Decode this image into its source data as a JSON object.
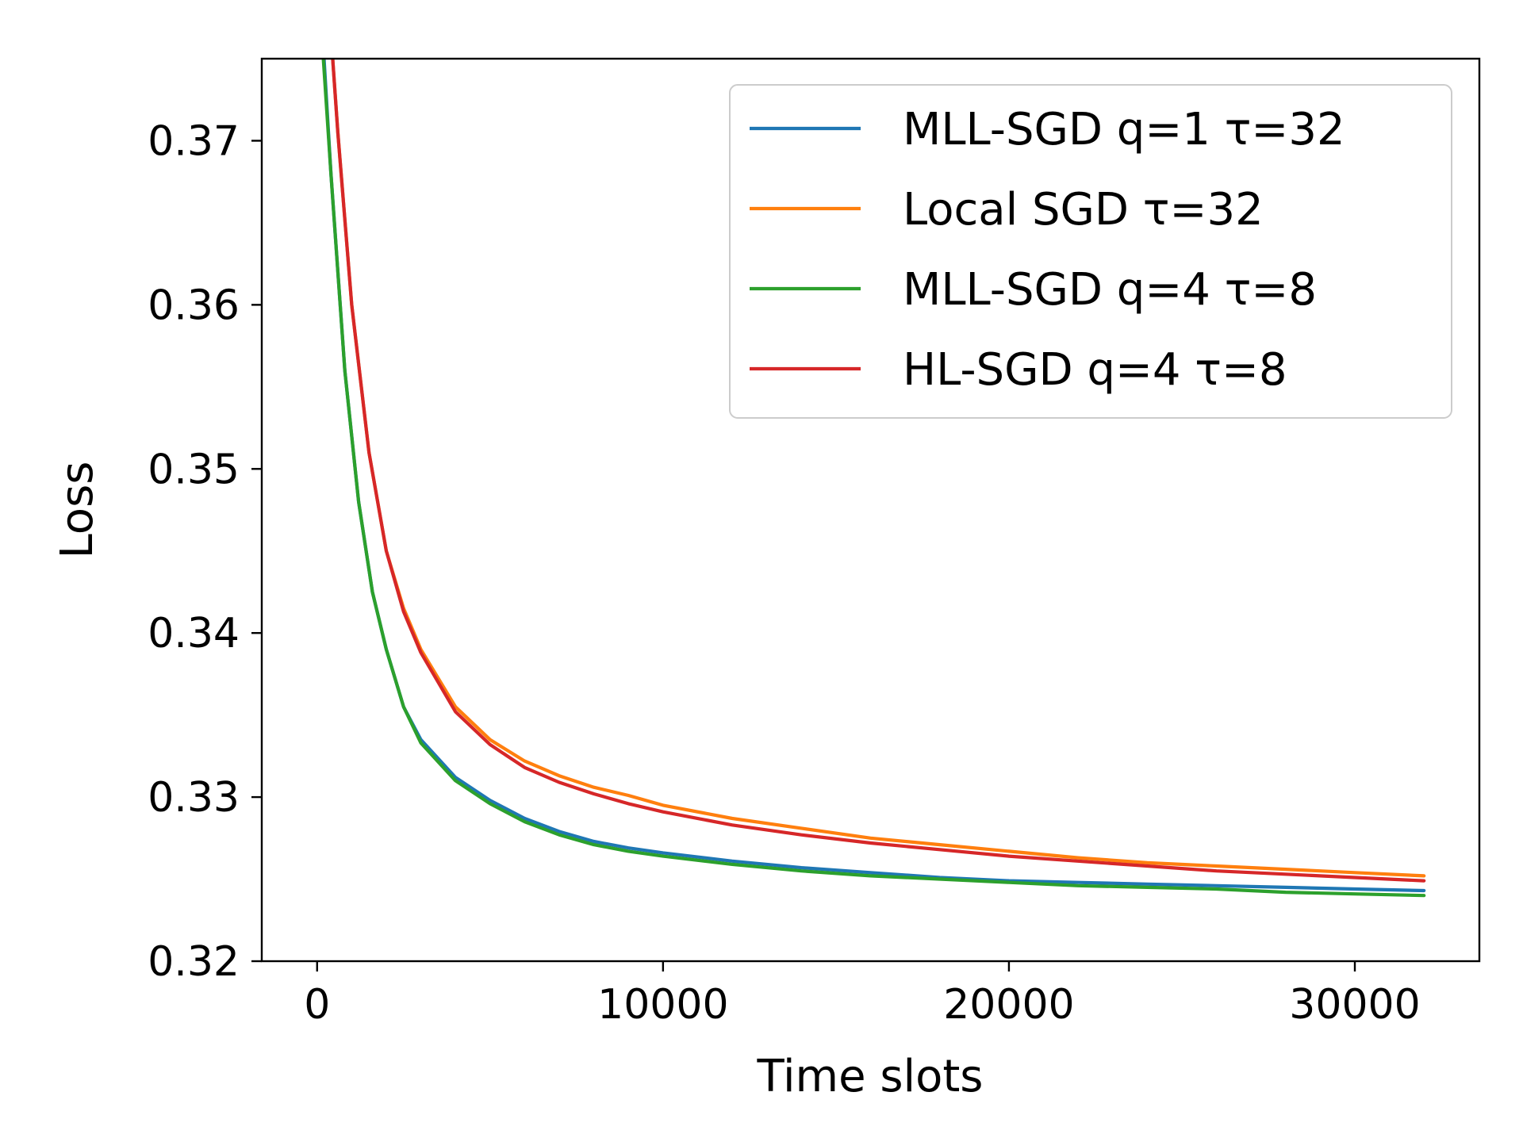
{
  "chart_data": {
    "type": "line",
    "title": "",
    "xlabel": "Time slots",
    "ylabel": "Loss",
    "xlim": [
      -1600,
      33600
    ],
    "ylim": [
      0.32,
      0.375
    ],
    "xticks": [
      0,
      10000,
      20000,
      30000
    ],
    "xtick_labels": [
      "0",
      "10000",
      "20000",
      "30000"
    ],
    "yticks": [
      0.32,
      0.33,
      0.34,
      0.35,
      0.36,
      0.37
    ],
    "ytick_labels": [
      "0.32",
      "0.33",
      "0.34",
      "0.35",
      "0.36",
      "0.37"
    ],
    "grid": false,
    "legend_position": "top-right",
    "series": [
      {
        "name": "MLL-SGD q=1 τ=32",
        "color": "#1f77b4",
        "x": [
          200,
          400,
          800,
          1200,
          1600,
          2000,
          2500,
          3000,
          4000,
          5000,
          6000,
          7000,
          8000,
          9000,
          10000,
          12000,
          14000,
          16000,
          18000,
          20000,
          22000,
          24000,
          26000,
          28000,
          30000,
          32000
        ],
        "y": [
          0.375,
          0.368,
          0.356,
          0.348,
          0.3425,
          0.339,
          0.3355,
          0.3335,
          0.3312,
          0.3298,
          0.3287,
          0.3279,
          0.3273,
          0.3269,
          0.3266,
          0.3261,
          0.3257,
          0.3254,
          0.3251,
          0.3249,
          0.3248,
          0.3247,
          0.3246,
          0.3245,
          0.3244,
          0.3243
        ]
      },
      {
        "name": "Local SGD τ=32",
        "color": "#ff7f0e",
        "x": [
          450,
          600,
          1000,
          1500,
          2000,
          2500,
          3000,
          4000,
          5000,
          6000,
          7000,
          8000,
          9000,
          10000,
          12000,
          14000,
          16000,
          18000,
          20000,
          22000,
          24000,
          26000,
          28000,
          30000,
          32000
        ],
        "y": [
          0.375,
          0.3705,
          0.36,
          0.351,
          0.345,
          0.3415,
          0.339,
          0.3355,
          0.3335,
          0.3322,
          0.3313,
          0.3306,
          0.3301,
          0.3295,
          0.3287,
          0.3281,
          0.3275,
          0.3271,
          0.3267,
          0.3263,
          0.326,
          0.3258,
          0.3256,
          0.3254,
          0.3252
        ]
      },
      {
        "name": "MLL-SGD q=4 τ=8",
        "color": "#2ca02c",
        "x": [
          180,
          400,
          800,
          1200,
          1600,
          2000,
          2500,
          3000,
          4000,
          5000,
          6000,
          7000,
          8000,
          9000,
          10000,
          12000,
          14000,
          16000,
          18000,
          20000,
          22000,
          24000,
          26000,
          28000,
          30000,
          32000
        ],
        "y": [
          0.375,
          0.368,
          0.356,
          0.348,
          0.3425,
          0.339,
          0.3355,
          0.3333,
          0.331,
          0.3296,
          0.3285,
          0.3277,
          0.3271,
          0.3267,
          0.3264,
          0.3259,
          0.3255,
          0.3252,
          0.325,
          0.3248,
          0.3246,
          0.3245,
          0.3244,
          0.3242,
          0.3241,
          0.324
        ]
      },
      {
        "name": "HL-SGD q=4 τ=8",
        "color": "#d62728",
        "x": [
          450,
          600,
          1000,
          1500,
          2000,
          2500,
          3000,
          4000,
          5000,
          6000,
          7000,
          8000,
          9000,
          10000,
          12000,
          14000,
          16000,
          18000,
          20000,
          22000,
          24000,
          26000,
          28000,
          30000,
          32000
        ],
        "y": [
          0.375,
          0.3705,
          0.36,
          0.351,
          0.345,
          0.3413,
          0.3388,
          0.3352,
          0.3332,
          0.3318,
          0.3309,
          0.3302,
          0.3296,
          0.3291,
          0.3283,
          0.3277,
          0.3272,
          0.3268,
          0.3264,
          0.3261,
          0.3258,
          0.3255,
          0.3253,
          0.3251,
          0.3249
        ]
      }
    ]
  }
}
